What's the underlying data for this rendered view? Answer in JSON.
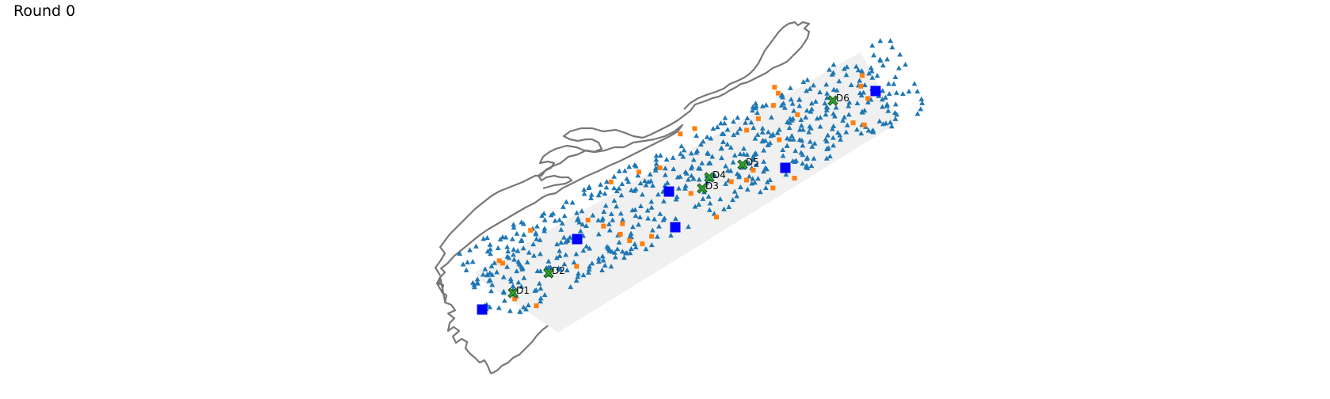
{
  "header": {
    "title": "Round 0"
  },
  "colors": {
    "coastline": "#777777",
    "region_fill": "#f0f0f0",
    "customer": "#1f77b4",
    "secondary_site": "#ff7f0e",
    "facility": "#0000ff",
    "depot_fill": "#2ca02c",
    "depot_edge": "#1a4d1a"
  },
  "icons": {
    "customer": "triangle-icon",
    "secondary_site": "small-square-icon",
    "facility": "square-icon",
    "depot": "x-cross-icon"
  },
  "map": {
    "depots": [
      {
        "label": "D1"
      },
      {
        "label": "D2"
      },
      {
        "label": "D3"
      },
      {
        "label": "D4"
      },
      {
        "label": "D5"
      },
      {
        "label": "D6"
      }
    ]
  }
}
